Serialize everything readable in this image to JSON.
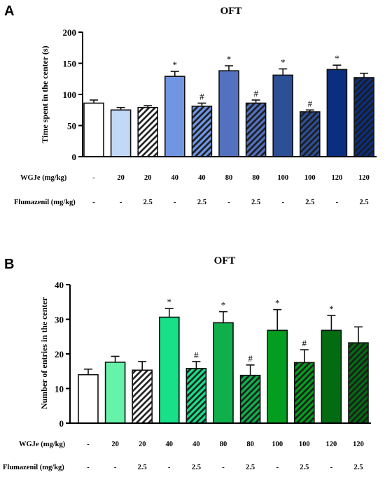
{
  "chart_data": [
    {
      "type": "bar",
      "panel": "A",
      "title": "OFT",
      "ylabel": "Time spent in the center (s)",
      "xlabel": "",
      "ylim": [
        0,
        200
      ],
      "yticks": [
        0,
        50,
        100,
        150,
        200
      ],
      "values": [
        86,
        75,
        79,
        129,
        81,
        138,
        86,
        131,
        72,
        140,
        127
      ],
      "errors": [
        5,
        4,
        3,
        8,
        5,
        8,
        5,
        10,
        3,
        7,
        7
      ],
      "annotations": [
        "",
        "",
        "",
        "*",
        "#",
        "*",
        "#",
        "*",
        "#",
        "*",
        ""
      ],
      "colors": [
        "#ffffff",
        "#c2d8f7",
        "#c2d8f7",
        "#6f95e3",
        "#6f95e3",
        "#5272bf",
        "#5272bf",
        "#2c4f95",
        "#2c4f95",
        "#0a2f80",
        "#0a2f80"
      ],
      "hatched": [
        false,
        false,
        true,
        false,
        true,
        false,
        true,
        false,
        true,
        false,
        true
      ],
      "row_labels": [
        "WGJe (mg/kg)",
        "Flumazenil (mg/kg)"
      ],
      "rows": [
        [
          "-",
          "20",
          "20",
          "40",
          "40",
          "80",
          "80",
          "100",
          "100",
          "120",
          "120"
        ],
        [
          "-",
          "-",
          "2.5",
          "-",
          "2.5",
          "-",
          "2.5",
          "-",
          "2.5",
          "-",
          "2.5"
        ]
      ]
    },
    {
      "type": "bar",
      "panel": "B",
      "title": "OFT",
      "ylabel": "Number of entries in the center",
      "xlabel": "",
      "ylim": [
        0,
        40
      ],
      "yticks": [
        0,
        10,
        20,
        30,
        40
      ],
      "values": [
        14,
        17.6,
        15.3,
        30.6,
        15.8,
        29,
        13.8,
        26.8,
        17.5,
        26.8,
        23.2
      ],
      "errors": [
        1.6,
        1.7,
        2.5,
        2.5,
        2,
        3.2,
        3,
        6,
        3.7,
        4.3,
        4.6
      ],
      "annotations": [
        "",
        "",
        "",
        "*",
        "#",
        "*",
        "#",
        "*",
        "#",
        "*",
        ""
      ],
      "colors": [
        "#ffffff",
        "#66f2a9",
        "#a8f1c7",
        "#18e089",
        "#18e089",
        "#0fb04c",
        "#0fb04c",
        "#039e1f",
        "#039e1f",
        "#036b12",
        "#036b12"
      ],
      "hatched": [
        false,
        false,
        true,
        false,
        true,
        false,
        true,
        false,
        true,
        false,
        true
      ],
      "row_labels": [
        "WGJe (mg/kg)",
        "Flumazenil (mg/kg)"
      ],
      "rows": [
        [
          "-",
          "20",
          "20",
          "40",
          "40",
          "80",
          "80",
          "100",
          "100",
          "120",
          "120"
        ],
        [
          "-",
          "-",
          "2.5",
          "-",
          "2.5",
          "-",
          "2.5",
          "-",
          "2.5",
          "-",
          "2.5"
        ]
      ]
    }
  ]
}
